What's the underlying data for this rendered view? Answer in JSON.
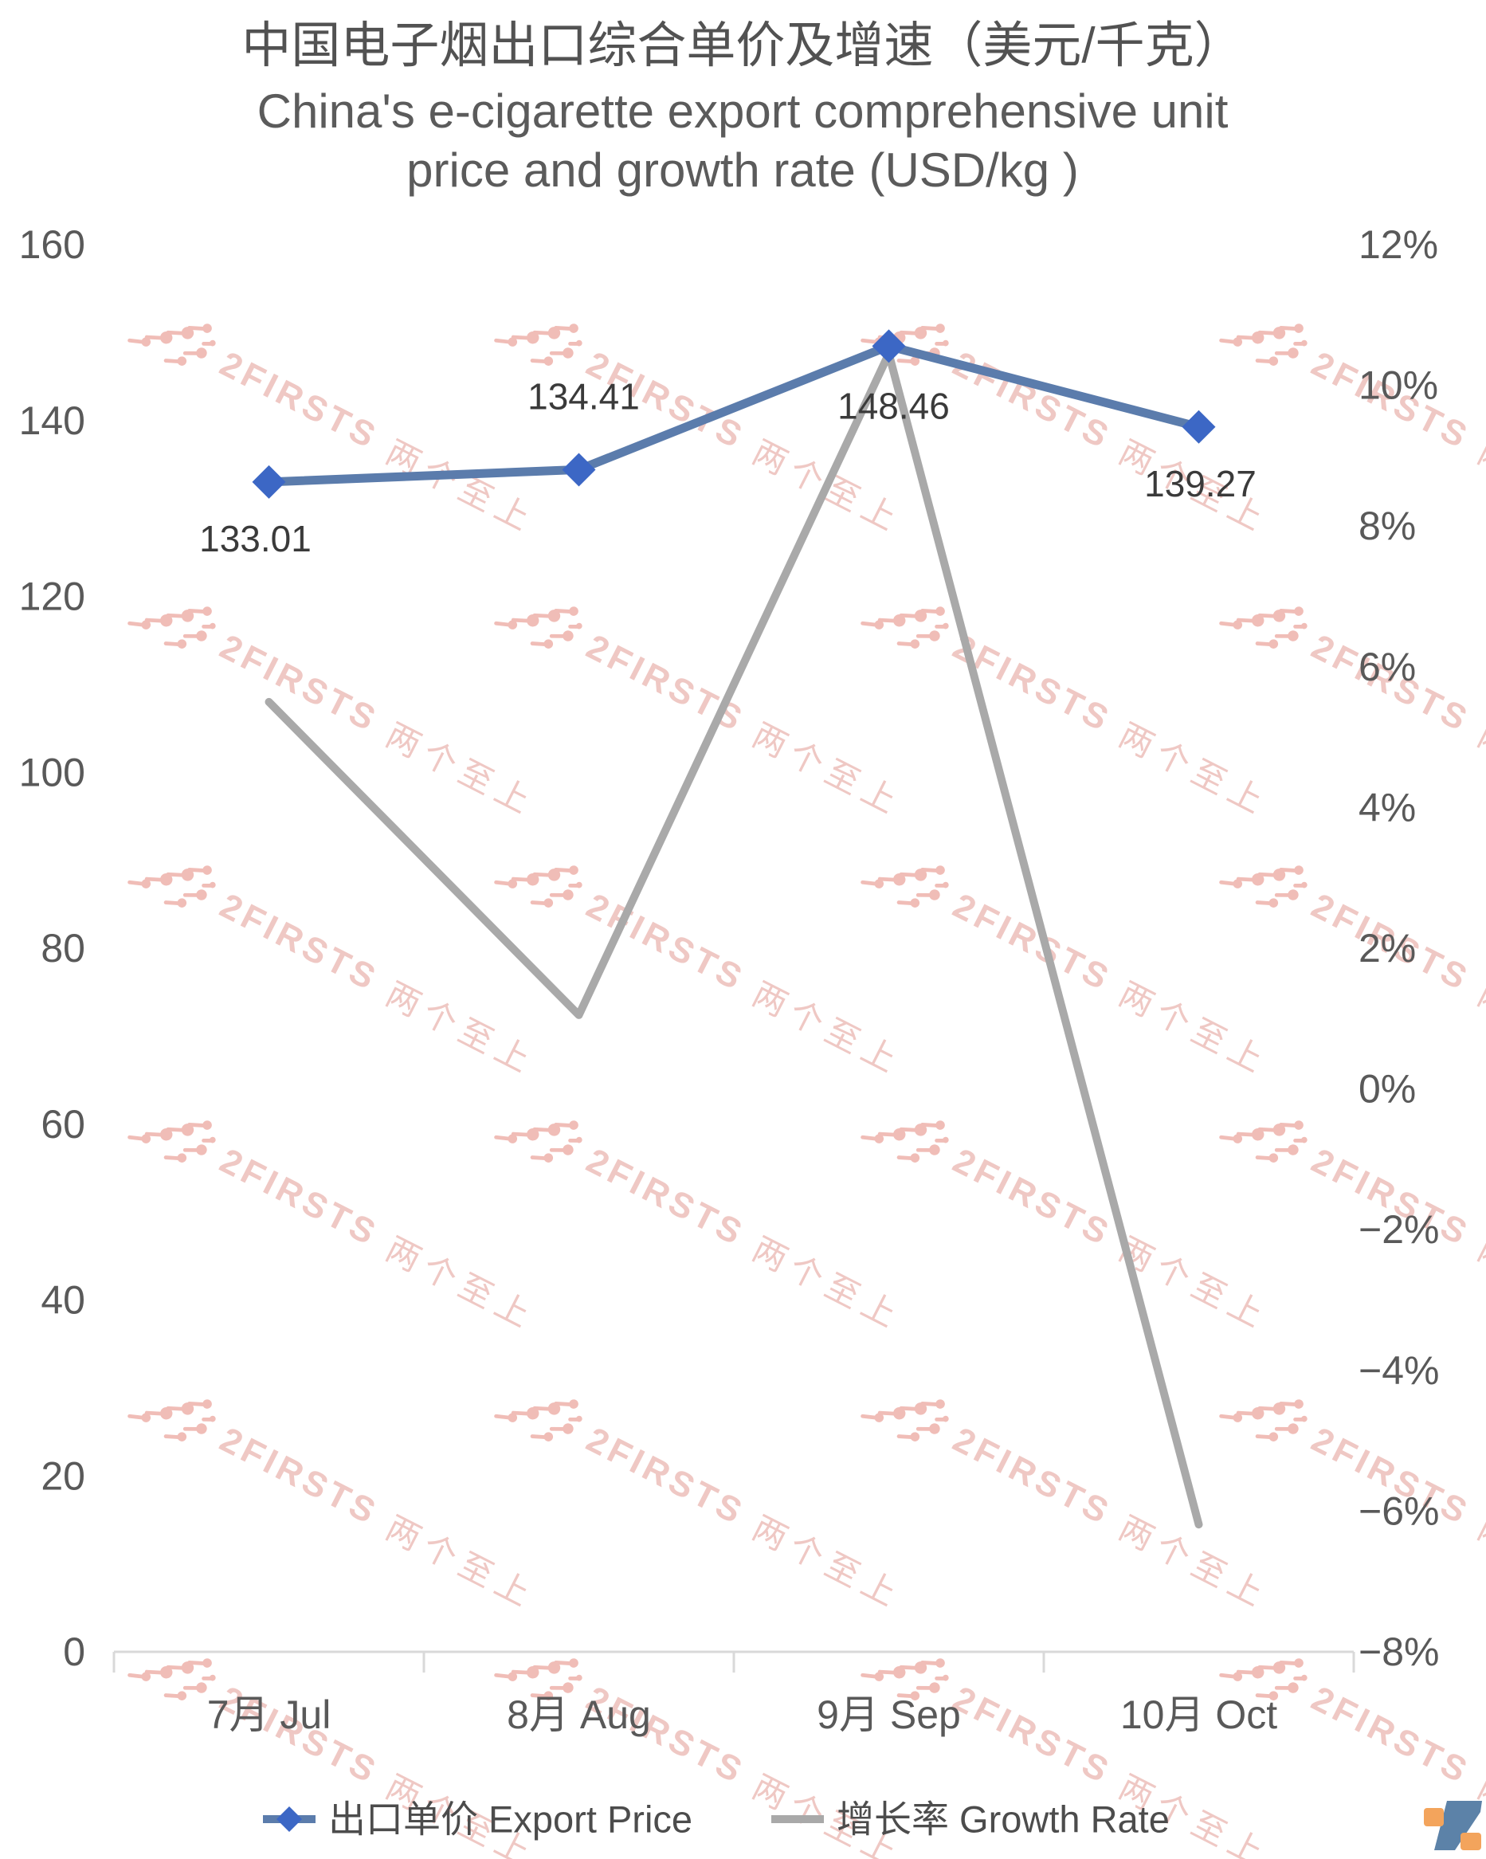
{
  "header": {
    "title_cn": "中国电子烟出口综合单价及增速（美元/千克）",
    "title_en_line1": "China's e-cigarette export comprehensive unit",
    "title_en_line2": "price and growth rate (USD/kg )"
  },
  "chart_data": {
    "type": "line",
    "categories": [
      "7月 Jul",
      "8月 Aug",
      "9月 Sep",
      "10月 Oct"
    ],
    "series": [
      {
        "name": "出口单价 Export Price",
        "axis": "left",
        "values": [
          133.01,
          134.41,
          148.46,
          139.27
        ],
        "point_labels": [
          "133.01",
          "134.41",
          "148.46",
          "139.27"
        ],
        "color": "#5b7cac",
        "marker": "diamond",
        "marker_color": "#3c67c5"
      },
      {
        "name": "增长率 Growth Rate",
        "axis": "right",
        "values": [
          5.5,
          1.05,
          10.45,
          -6.19
        ],
        "point_labels": [],
        "color": "#a9a9a9",
        "marker": "none",
        "marker_color": "#a9a9a9"
      }
    ],
    "left_axis": {
      "min": 0,
      "max": 160,
      "tick_labels": [
        "160",
        "140",
        "120",
        "100",
        "80",
        "60",
        "40",
        "20",
        "0"
      ]
    },
    "right_axis": {
      "min": -8,
      "max": 12,
      "tick_labels": [
        "12%",
        "10%",
        "8%",
        "6%",
        "4%",
        "2%",
        "0%",
        "−2%",
        "−4%",
        "−6%",
        "−8%"
      ]
    },
    "legend_position": "bottom",
    "grid": false,
    "axis_line_color": "#d9d9d9"
  },
  "watermark": {
    "brand": "2FIRSTS",
    "brand_cn": "两个至上",
    "text_color": "#efc8c4",
    "dots_color": "#f0bdb7"
  },
  "logo": {
    "blue": "#5c82a8",
    "orange": "#f3a45c"
  }
}
